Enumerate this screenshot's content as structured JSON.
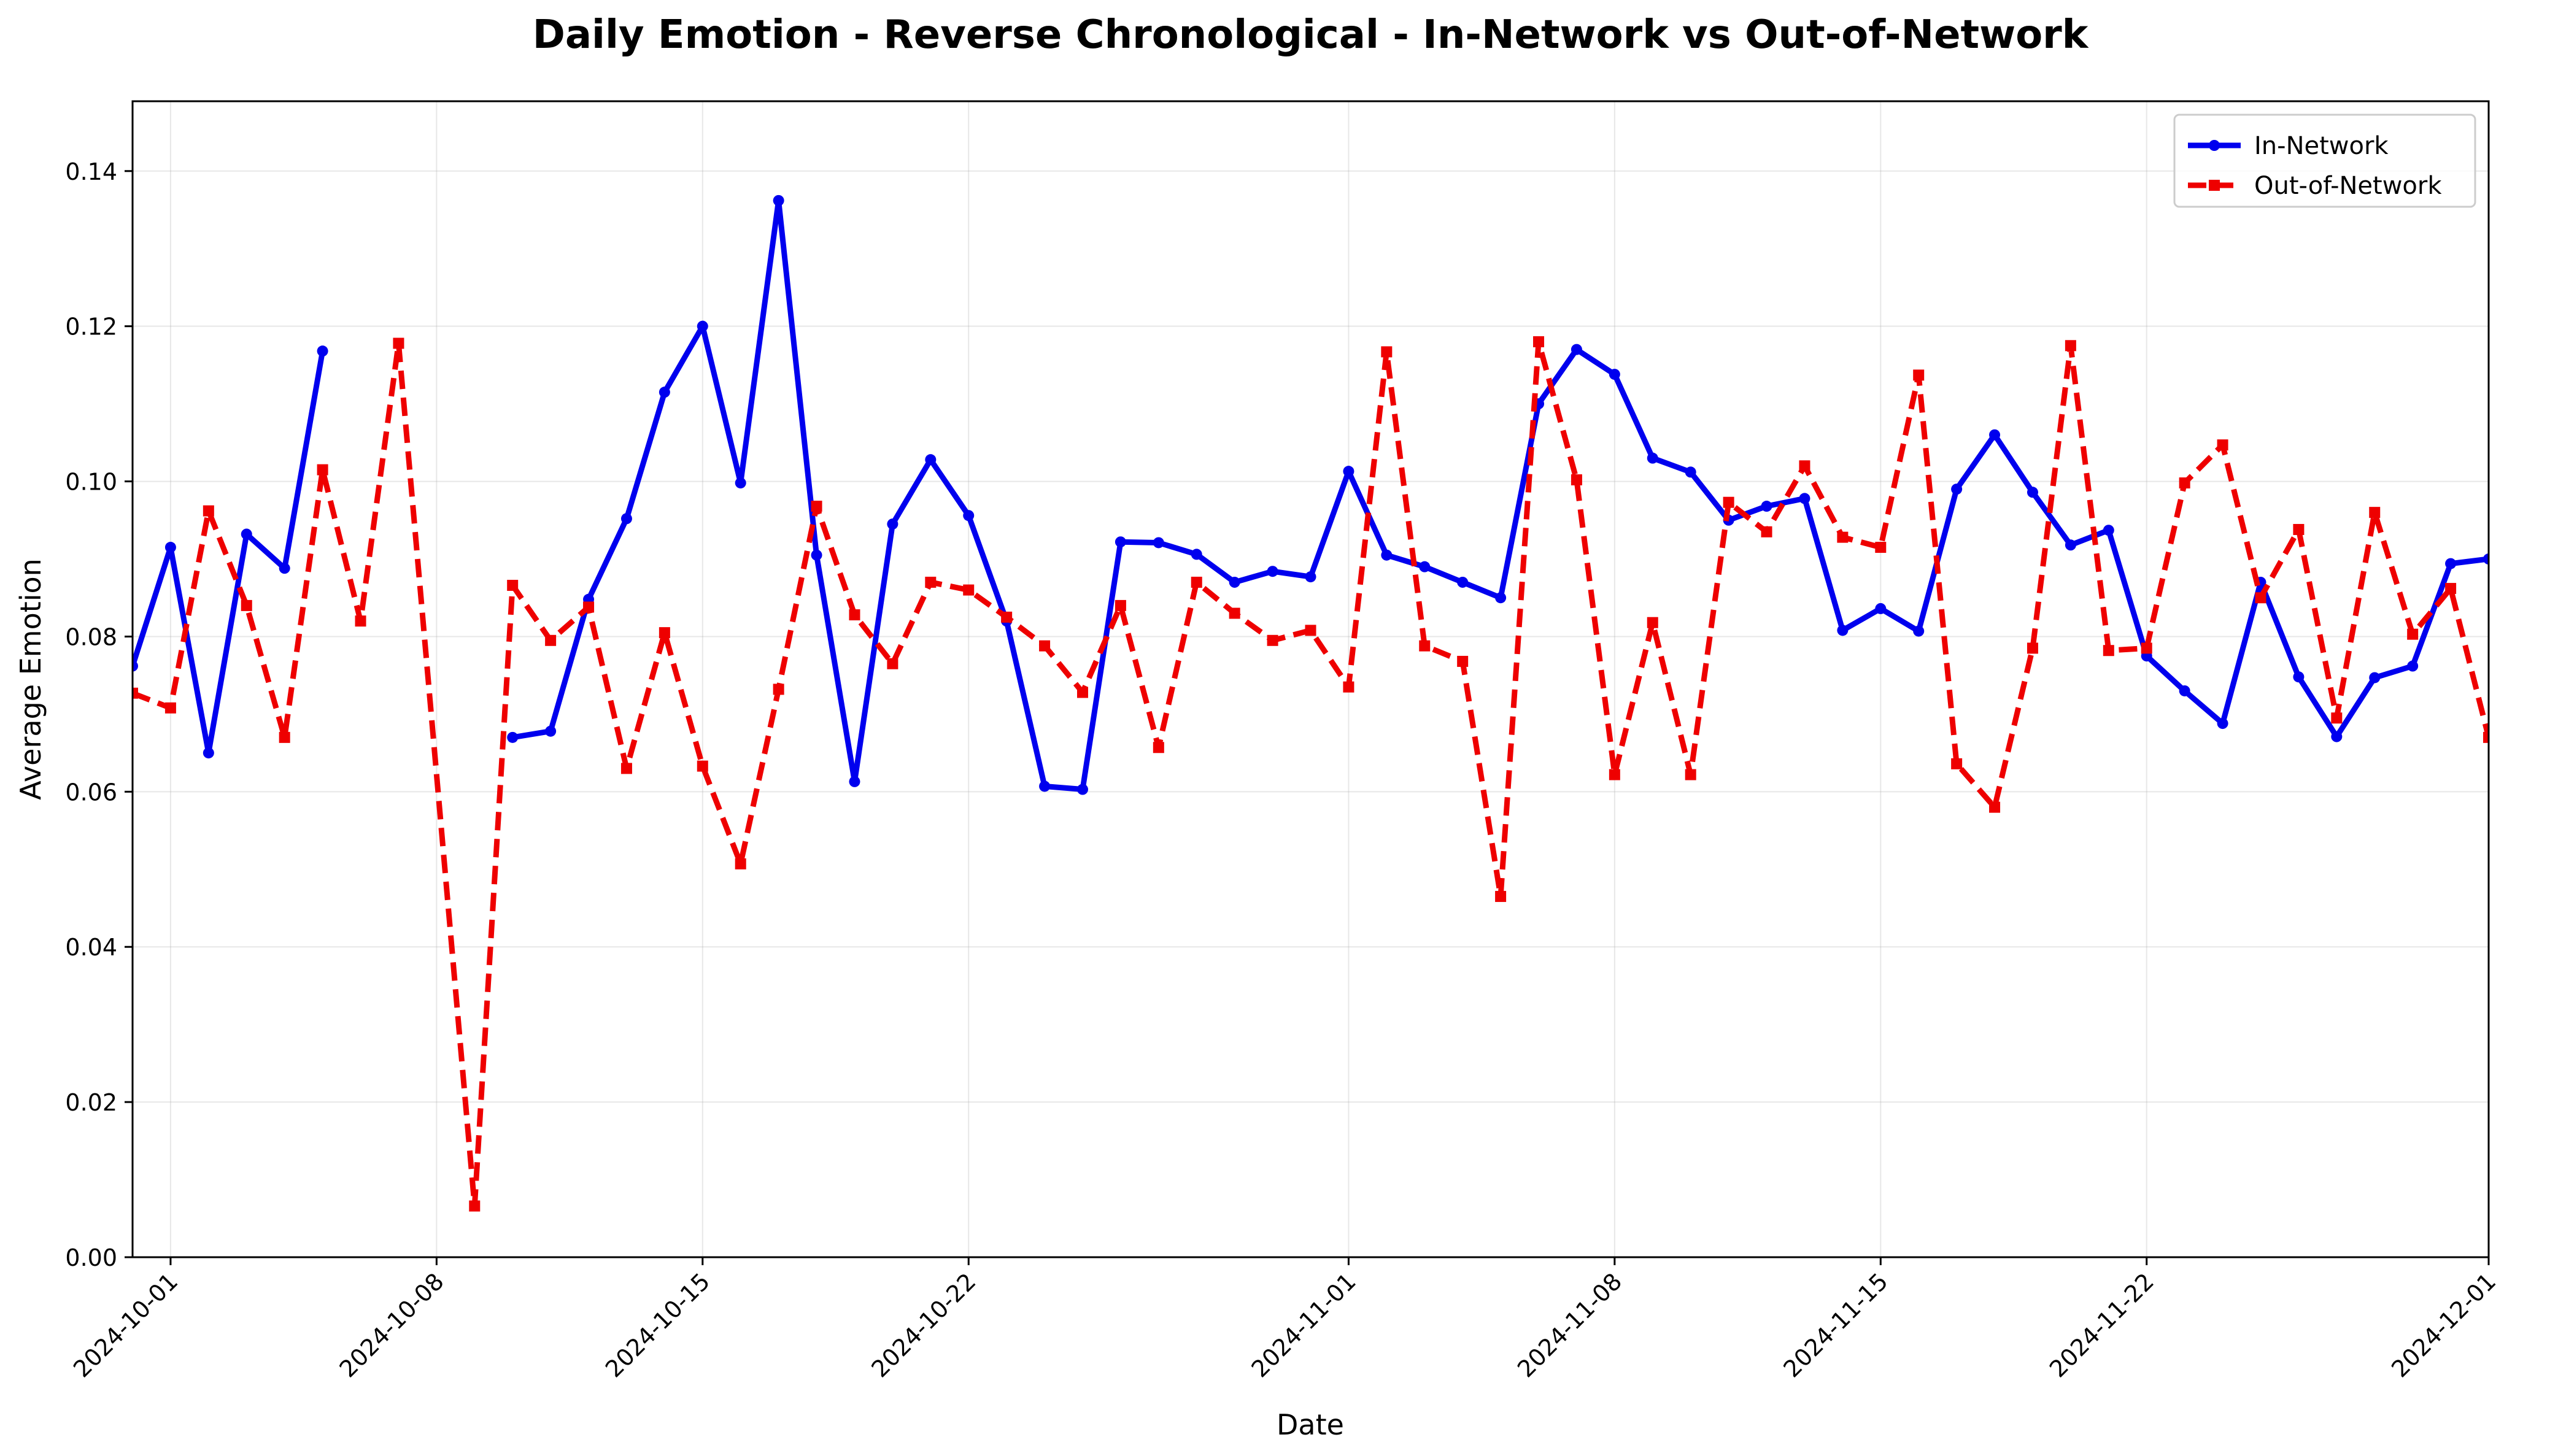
{
  "chart_data": {
    "type": "line",
    "title": "Daily Emotion - Reverse Chronological - In-Network vs Out-of-Network",
    "xlabel": "Date",
    "ylabel": "Average Emotion",
    "x_range": [
      "2024-09-30",
      "2024-12-01"
    ],
    "ylim": [
      0,
      0.149
    ],
    "y_ticks": [
      0.0,
      0.02,
      0.04,
      0.06,
      0.08,
      0.1,
      0.12,
      0.14
    ],
    "y_tick_labels": [
      "0.00",
      "0.02",
      "0.04",
      "0.06",
      "0.08",
      "0.10",
      "0.12",
      "0.14"
    ],
    "x_ticks": [
      "2024-10-01",
      "2024-10-08",
      "2024-10-15",
      "2024-10-22",
      "2024-11-01",
      "2024-11-08",
      "2024-11-15",
      "2024-11-22",
      "2024-12-01"
    ],
    "x_tick_labels": [
      "2024-10-01",
      "2024-10-08",
      "2024-10-15",
      "2024-10-22",
      "2024-11-01",
      "2024-11-08",
      "2024-11-15",
      "2024-11-22",
      "2024-12-01"
    ],
    "grid": true,
    "legend": "top-right",
    "series": [
      {
        "name": "In-Network",
        "color": "#0000ee",
        "style": "solid",
        "marker": "circle",
        "points": [
          [
            "2024-09-30",
            0.0762
          ],
          [
            "2024-10-01",
            0.0915
          ],
          [
            "2024-10-02",
            0.065
          ],
          [
            "2024-10-03",
            0.0932
          ],
          [
            "2024-10-04",
            0.0888
          ],
          [
            "2024-10-05",
            0.1168
          ],
          null,
          [
            "2024-10-10",
            0.067
          ],
          [
            "2024-10-11",
            0.0678
          ],
          [
            "2024-10-12",
            0.0848
          ],
          [
            "2024-10-13",
            0.0952
          ],
          [
            "2024-10-14",
            0.1115
          ],
          [
            "2024-10-15",
            0.12
          ],
          [
            "2024-10-16",
            0.0998
          ],
          [
            "2024-10-17",
            0.1362
          ],
          [
            "2024-10-18",
            0.0905
          ],
          [
            "2024-10-19",
            0.0613
          ],
          [
            "2024-10-20",
            0.0945
          ],
          [
            "2024-10-21",
            0.1028
          ],
          [
            "2024-10-22",
            0.0956
          ],
          [
            "2024-10-23",
            0.082
          ],
          [
            "2024-10-24",
            0.0607
          ],
          [
            "2024-10-25",
            0.0603
          ],
          [
            "2024-10-26",
            0.0922
          ],
          [
            "2024-10-27",
            0.0921
          ],
          [
            "2024-10-28",
            0.0906
          ],
          [
            "2024-10-29",
            0.087
          ],
          [
            "2024-10-30",
            0.0884
          ],
          [
            "2024-10-31",
            0.0877
          ],
          [
            "2024-11-01",
            0.1013
          ],
          [
            "2024-11-02",
            0.0905
          ],
          [
            "2024-11-03",
            0.089
          ],
          [
            "2024-11-04",
            0.087
          ],
          [
            "2024-11-05",
            0.085
          ],
          [
            "2024-11-06",
            0.11
          ],
          [
            "2024-11-07",
            0.117
          ],
          [
            "2024-11-08",
            0.1138
          ],
          [
            "2024-11-09",
            0.103
          ],
          [
            "2024-11-10",
            0.1012
          ],
          [
            "2024-11-11",
            0.095
          ],
          [
            "2024-11-12",
            0.0968
          ],
          [
            "2024-11-13",
            0.0978
          ],
          [
            "2024-11-14",
            0.0808
          ],
          [
            "2024-11-15",
            0.0836
          ],
          [
            "2024-11-16",
            0.0807
          ],
          [
            "2024-11-17",
            0.099
          ],
          [
            "2024-11-18",
            0.106
          ],
          [
            "2024-11-19",
            0.0986
          ],
          [
            "2024-11-20",
            0.0918
          ],
          [
            "2024-11-21",
            0.0937
          ],
          [
            "2024-11-22",
            0.0775
          ],
          [
            "2024-11-23",
            0.073
          ],
          [
            "2024-11-24",
            0.0688
          ],
          [
            "2024-11-25",
            0.087
          ],
          [
            "2024-11-26",
            0.0748
          ],
          [
            "2024-11-27",
            0.0671
          ],
          [
            "2024-11-28",
            0.0747
          ],
          [
            "2024-11-29",
            0.0762
          ],
          [
            "2024-11-30",
            0.0894
          ],
          [
            "2024-12-01",
            0.09
          ]
        ]
      },
      {
        "name": "Out-of-Network",
        "color": "#ee0000",
        "style": "dashed",
        "marker": "square",
        "points": [
          [
            "2024-09-30",
            0.0727
          ],
          [
            "2024-10-01",
            0.0708
          ],
          [
            "2024-10-02",
            0.0962
          ],
          [
            "2024-10-03",
            0.084
          ],
          [
            "2024-10-04",
            0.067
          ],
          [
            "2024-10-05",
            0.1015
          ],
          [
            "2024-10-06",
            0.082
          ],
          [
            "2024-10-07",
            0.1178
          ],
          [
            "2024-10-09",
            0.0066
          ],
          [
            "2024-10-10",
            0.0866
          ],
          [
            "2024-10-11",
            0.0795
          ],
          [
            "2024-10-12",
            0.0838
          ],
          [
            "2024-10-13",
            0.063
          ],
          [
            "2024-10-14",
            0.0805
          ],
          [
            "2024-10-15",
            0.0633
          ],
          [
            "2024-10-16",
            0.0507
          ],
          [
            "2024-10-17",
            0.0732
          ],
          [
            "2024-10-18",
            0.0968
          ],
          [
            "2024-10-19",
            0.0828
          ],
          [
            "2024-10-20",
            0.0765
          ],
          [
            "2024-10-21",
            0.087
          ],
          [
            "2024-10-22",
            0.086
          ],
          [
            "2024-10-23",
            0.0825
          ],
          [
            "2024-10-24",
            0.0788
          ],
          [
            "2024-10-25",
            0.0728
          ],
          [
            "2024-10-26",
            0.084
          ],
          [
            "2024-10-27",
            0.0657
          ],
          [
            "2024-10-28",
            0.087
          ],
          [
            "2024-10-29",
            0.083
          ],
          [
            "2024-10-30",
            0.0795
          ],
          [
            "2024-10-31",
            0.0808
          ],
          [
            "2024-11-01",
            0.0735
          ],
          [
            "2024-11-02",
            0.1167
          ],
          [
            "2024-11-03",
            0.0788
          ],
          [
            "2024-11-04",
            0.0768
          ],
          [
            "2024-11-05",
            0.0465
          ],
          [
            "2024-11-06",
            0.118
          ],
          [
            "2024-11-07",
            0.1002
          ],
          [
            "2024-11-08",
            0.0622
          ],
          [
            "2024-11-09",
            0.0818
          ],
          [
            "2024-11-10",
            0.0622
          ],
          [
            "2024-11-11",
            0.0973
          ],
          [
            "2024-11-12",
            0.0935
          ],
          [
            "2024-11-13",
            0.102
          ],
          [
            "2024-11-14",
            0.0928
          ],
          [
            "2024-11-15",
            0.0915
          ],
          [
            "2024-11-16",
            0.1137
          ],
          [
            "2024-11-17",
            0.0636
          ],
          [
            "2024-11-18",
            0.058
          ],
          [
            "2024-11-19",
            0.0785
          ],
          [
            "2024-11-20",
            0.1175
          ],
          [
            "2024-11-21",
            0.0782
          ],
          [
            "2024-11-22",
            0.0785
          ],
          [
            "2024-11-23",
            0.0998
          ],
          [
            "2024-11-24",
            0.1047
          ],
          [
            "2024-11-25",
            0.085
          ],
          [
            "2024-11-26",
            0.0938
          ],
          [
            "2024-11-27",
            0.0695
          ],
          [
            "2024-11-28",
            0.096
          ],
          [
            "2024-11-29",
            0.0803
          ],
          [
            "2024-11-30",
            0.0862
          ],
          [
            "2024-12-01",
            0.067
          ]
        ]
      }
    ]
  }
}
